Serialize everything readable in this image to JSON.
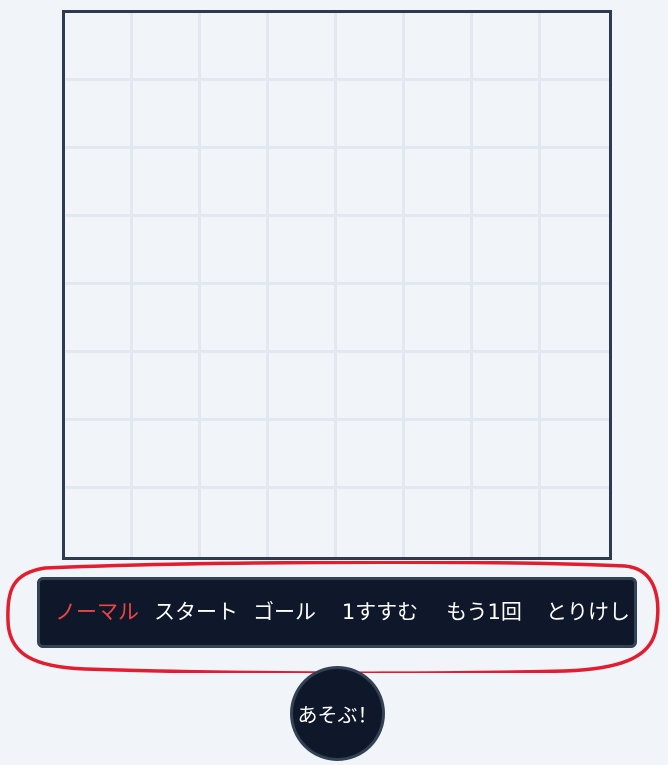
{
  "grid": {
    "rows": 8,
    "cols": 8
  },
  "toolbar": {
    "modes": [
      {
        "label": "ノーマル",
        "active": true
      },
      {
        "label": "スタート",
        "active": false
      },
      {
        "label": "ゴール",
        "active": false
      },
      {
        "label": "1すすむ",
        "active": false
      },
      {
        "label": "もう1回",
        "active": false
      },
      {
        "label": "とりけし",
        "active": false
      }
    ]
  },
  "play_button": {
    "label": "あそぶ！"
  },
  "colors": {
    "background": "#f1f5f9",
    "grid_border": "#2d3a4f",
    "grid_line": "#e2e8f0",
    "toolbar_bg": "#0f172a",
    "toolbar_border": "#334155",
    "active_mode": "#ef4444",
    "annotation": "#e11d2e"
  }
}
